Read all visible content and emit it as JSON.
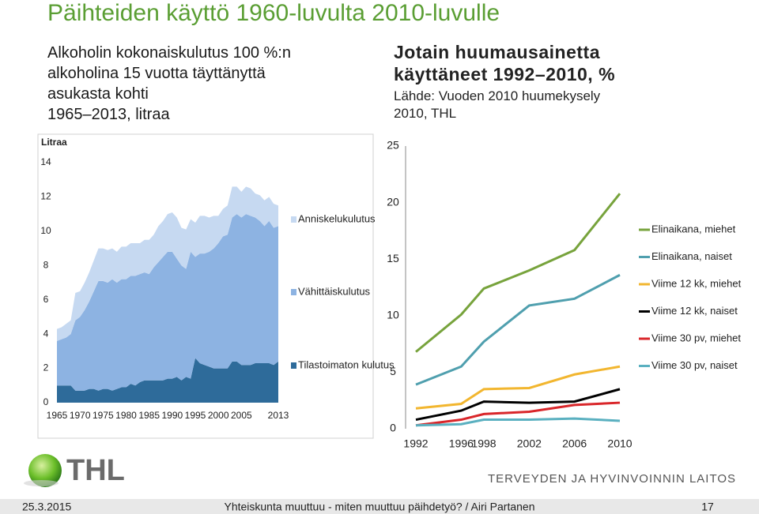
{
  "title": "Päihteiden käyttö 1960-luvulta 2010-luvulle",
  "chart_data": [
    {
      "type": "area",
      "stacked": true,
      "title": [
        "Alkoholin kokonaiskulutus 100 %:n",
        "alkoholina 15 vuotta täyttänyttä",
        "asukasta kohti",
        "1965–2013, litraa"
      ],
      "y_label": "Litraa",
      "x": [
        1965,
        1966,
        1967,
        1968,
        1969,
        1970,
        1971,
        1972,
        1973,
        1974,
        1975,
        1976,
        1977,
        1978,
        1979,
        1980,
        1981,
        1982,
        1983,
        1984,
        1985,
        1986,
        1987,
        1988,
        1989,
        1990,
        1991,
        1992,
        1993,
        1994,
        1995,
        1996,
        1997,
        1998,
        1999,
        2000,
        2001,
        2002,
        2003,
        2004,
        2005,
        2006,
        2007,
        2008,
        2009,
        2010,
        2011,
        2012,
        2013
      ],
      "xlim": [
        1965,
        2013
      ],
      "xticks": [
        1965,
        1970,
        1975,
        1980,
        1985,
        1990,
        1995,
        2000,
        2005,
        2013
      ],
      "ylim": [
        0,
        14
      ],
      "yticks": [
        0,
        2,
        4,
        6,
        8,
        10,
        12,
        14
      ],
      "series": [
        {
          "name": "Tilastoimaton kulutus",
          "color": "#2e6b9a",
          "values": [
            1.0,
            1.0,
            1.0,
            1.0,
            0.7,
            0.7,
            0.7,
            0.8,
            0.8,
            0.7,
            0.8,
            0.8,
            0.7,
            0.8,
            0.9,
            0.9,
            1.1,
            1.0,
            1.2,
            1.3,
            1.3,
            1.3,
            1.3,
            1.3,
            1.4,
            1.4,
            1.5,
            1.3,
            1.5,
            1.4,
            2.6,
            2.3,
            2.2,
            2.1,
            2.0,
            2.0,
            2.0,
            2.0,
            2.4,
            2.4,
            2.2,
            2.2,
            2.2,
            2.3,
            2.3,
            2.3,
            2.3,
            2.2,
            2.4
          ]
        },
        {
          "name": "Vähittäiskulutus",
          "color": "#8db3e2",
          "values": [
            2.6,
            2.7,
            2.8,
            3.0,
            4.1,
            4.3,
            4.7,
            5.1,
            5.7,
            6.4,
            6.3,
            6.2,
            6.5,
            6.2,
            6.3,
            6.3,
            6.3,
            6.4,
            6.3,
            6.3,
            6.2,
            6.6,
            6.9,
            7.2,
            7.4,
            7.4,
            6.9,
            6.7,
            6.3,
            7.4,
            5.9,
            6.4,
            6.5,
            6.7,
            7.0,
            7.3,
            7.7,
            7.8,
            8.4,
            8.6,
            8.6,
            8.8,
            8.7,
            8.5,
            8.3,
            8.0,
            8.3,
            8.0,
            7.9
          ]
        },
        {
          "name": "Anniskelukulutus",
          "color": "#c6d9f1",
          "values": [
            0.7,
            0.7,
            0.8,
            0.8,
            1.6,
            1.5,
            1.6,
            1.7,
            1.8,
            1.9,
            1.9,
            1.9,
            1.8,
            1.8,
            1.9,
            1.9,
            1.9,
            1.9,
            1.8,
            1.9,
            2.0,
            1.9,
            2.1,
            2.1,
            2.2,
            2.3,
            2.4,
            2.2,
            2.3,
            1.9,
            2.0,
            2.2,
            2.2,
            2.0,
            1.9,
            1.6,
            1.6,
            1.7,
            1.8,
            1.6,
            1.5,
            1.6,
            1.6,
            1.4,
            1.5,
            1.5,
            1.4,
            1.4,
            1.2
          ]
        }
      ]
    },
    {
      "type": "line",
      "title": [
        "Jotain huumausainetta",
        "käyttäneet 1992–2010, %"
      ],
      "subtitle": [
        "Lähde: Vuoden 2010 huumekysely",
        "2010, THL"
      ],
      "x": [
        1992,
        1996,
        1998,
        2002,
        2006,
        2010
      ],
      "xlim": [
        1992,
        2010
      ],
      "xticks": [
        1992,
        1996,
        1998,
        2002,
        2006,
        2010
      ],
      "ylim": [
        0,
        25
      ],
      "yticks": [
        0,
        5,
        10,
        15,
        20,
        25
      ],
      "series": [
        {
          "name": "Elinaikana, miehet",
          "color": "#77a33c",
          "values": [
            6.8,
            10.1,
            12.4,
            14.0,
            15.8,
            20.8
          ]
        },
        {
          "name": "Elinaikana, naiset",
          "color": "#4f9fae",
          "values": [
            3.9,
            5.5,
            7.7,
            10.9,
            11.5,
            13.6
          ]
        },
        {
          "name": "Viime 12 kk, miehet",
          "color": "#f2b62f",
          "values": [
            1.8,
            2.2,
            3.5,
            3.6,
            4.8,
            5.5
          ]
        },
        {
          "name": "Viime 12 kk, naiset",
          "color": "#000000",
          "values": [
            0.8,
            1.6,
            2.4,
            2.3,
            2.4,
            3.5
          ]
        },
        {
          "name": "Viime 30 pv, miehet",
          "color": "#d9262a",
          "values": [
            0.3,
            0.8,
            1.3,
            1.5,
            2.1,
            2.3
          ]
        },
        {
          "name": "Viime 30 pv, naiset",
          "color": "#5ab0c0",
          "values": [
            0.3,
            0.4,
            0.8,
            0.8,
            0.9,
            0.7
          ]
        }
      ]
    }
  ],
  "logo": "THL",
  "organization": "TERVEYDEN JA HYVINVOINNIN LAITOS",
  "footer": {
    "date": "25.3.2015",
    "text": "Yhteiskunta muuttuu - miten muuttuu päihdetyö? / Airi Partanen",
    "page": "17"
  }
}
